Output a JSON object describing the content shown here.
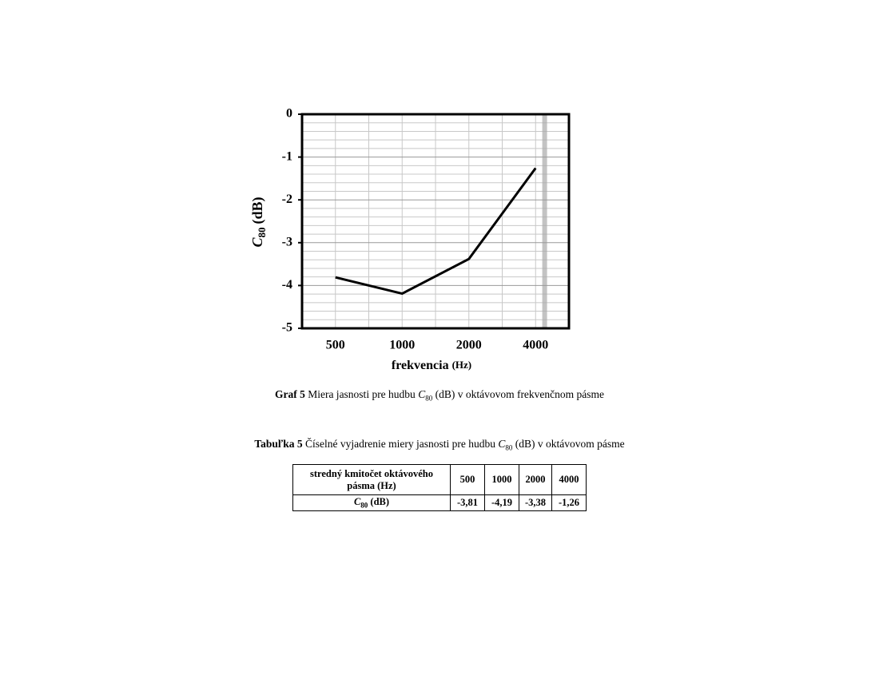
{
  "chart_data": {
    "type": "line",
    "ylabel": {
      "symbol": "C",
      "subscript": "80",
      "unit": "(dB)"
    },
    "xlabel": {
      "text": "frekvencia",
      "unit": "(Hz)"
    },
    "categories": [
      "500",
      "1000",
      "2000",
      "4000"
    ],
    "values": [
      -3.81,
      -4.19,
      -3.38,
      -1.26
    ],
    "color": "#000000",
    "ylim": [
      -5,
      0
    ],
    "yticks": [
      0,
      -1,
      -2,
      -3,
      -4,
      -5
    ],
    "grid": true
  },
  "figure_caption": {
    "label": "Graf 5",
    "text": "Miera jasnosti pre hudbu ",
    "symbol": "C",
    "subscript": "80",
    "rest": " (dB) v oktávovom frekvenčnom pásme"
  },
  "table_caption": {
    "label": "Tabuľka 5",
    "text": "Číselné vyjadrenie miery jasnosti pre hudbu ",
    "symbol": "C",
    "subscript": "80",
    "rest": " (dB)  v oktávovom pásme"
  },
  "table": {
    "header": [
      "stredný kmitočet oktávového pásma (Hz)",
      "500",
      "1000",
      "2000",
      "4000"
    ],
    "row_label": {
      "symbol": "C",
      "subscript": "80",
      "unit": "(dB)"
    },
    "row": [
      "-3,81",
      "-4,19",
      "-3,38",
      "-1,26"
    ]
  }
}
